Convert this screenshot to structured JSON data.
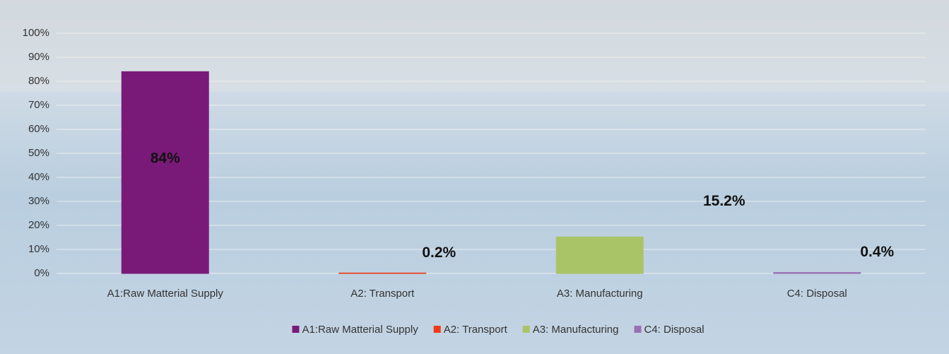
{
  "chart_data": {
    "type": "bar",
    "categories": [
      "A1:Raw Matterial Supply",
      "A2: Transport",
      "A3: Manufacturing",
      "C4: Disposal"
    ],
    "values": [
      84,
      0.2,
      15.2,
      0.4
    ],
    "value_labels": [
      "84%",
      "0.2%",
      "15.2%",
      "0.4%"
    ],
    "colors": [
      "#7a1a78",
      "#f03a17",
      "#a9c466",
      "#9b6fb3"
    ],
    "ylim": [
      0,
      100
    ],
    "yticks": [
      {
        "value": 0,
        "label": "0%"
      },
      {
        "value": 10,
        "label": "10%"
      },
      {
        "value": 20,
        "label": "20%"
      },
      {
        "value": 30,
        "label": "30%"
      },
      {
        "value": 40,
        "label": "40%"
      },
      {
        "value": 50,
        "label": "50%"
      },
      {
        "value": 60,
        "label": "60%"
      },
      {
        "value": 70,
        "label": "70%"
      },
      {
        "value": 80,
        "label": "80%"
      },
      {
        "value": 90,
        "label": "90%"
      },
      {
        "value": 100,
        "label": "100%"
      }
    ],
    "grid": true,
    "legend": "bottom"
  }
}
